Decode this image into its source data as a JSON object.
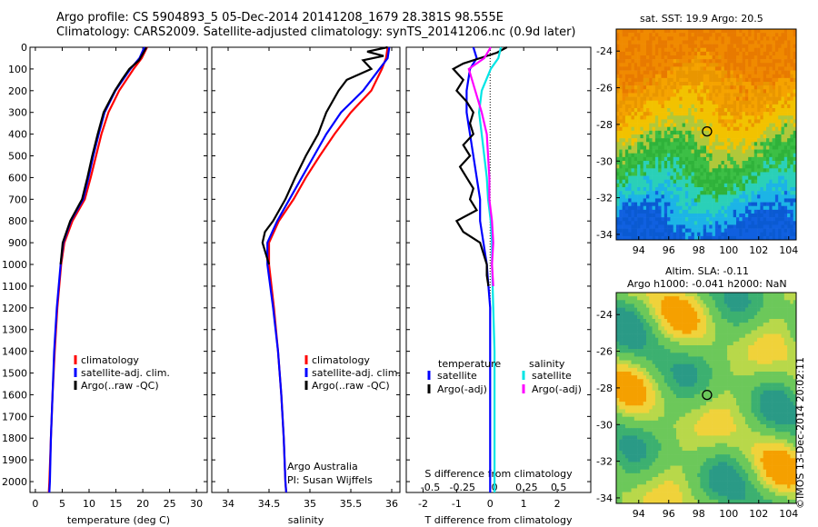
{
  "header": {
    "line1": "Argo profile: CS 5904893_5 05-Dec-2014 20141208_1679 28.381S 98.555E",
    "line2": "Climatology: CARS2009. Satellite-adjusted climatology: synTS_20141206.nc (0.9d later)"
  },
  "chart_data": [
    {
      "type": "line",
      "panel": "temperature",
      "xlabel": "temperature (deg C)",
      "ylabel": "",
      "xlim": [
        -1,
        32
      ],
      "ylim": [
        2050,
        0
      ],
      "xticks": [
        0,
        5,
        10,
        15,
        20,
        25,
        30
      ],
      "yticks": [
        0,
        100,
        200,
        300,
        400,
        500,
        600,
        700,
        800,
        900,
        1000,
        1100,
        1200,
        1300,
        1400,
        1500,
        1600,
        1700,
        1800,
        1900,
        2000
      ],
      "legend_position": "lower-right",
      "legend": [
        "climatology",
        "satellite-adj. clim.",
        "Argo(..raw -QC)"
      ],
      "colors": [
        "#ff0000",
        "#0000ff",
        "#000000"
      ],
      "series": [
        {
          "name": "climatology",
          "depth": [
            0,
            50,
            100,
            200,
            300,
            400,
            500,
            600,
            700,
            800,
            900,
            1000,
            1200,
            1400,
            1600,
            1800,
            2000,
            2050
          ],
          "values": [
            20.8,
            19.8,
            18.3,
            15.6,
            13.6,
            12.3,
            11.3,
            10.3,
            9.2,
            6.9,
            5.4,
            4.8,
            4.1,
            3.6,
            3.2,
            2.9,
            2.6,
            2.5
          ]
        },
        {
          "name": "satellite-adj. clim.",
          "depth": [
            0,
            50,
            100,
            200,
            300,
            400,
            500,
            600,
            700,
            800,
            900,
            1000,
            1200,
            1400,
            1600,
            1800,
            2000,
            2050
          ],
          "values": [
            20.3,
            19.4,
            17.7,
            14.9,
            12.9,
            11.8,
            10.8,
            9.9,
            8.9,
            6.6,
            5.2,
            4.7,
            4.0,
            3.5,
            3.2,
            2.9,
            2.7,
            2.6
          ]
        },
        {
          "name": "Argo(..raw -QC)",
          "depth": [
            0,
            30,
            60,
            100,
            150,
            200,
            300,
            400,
            500,
            600,
            700,
            800,
            900,
            1000
          ],
          "values": [
            20.7,
            20.0,
            19.3,
            17.5,
            16.1,
            14.8,
            12.7,
            11.6,
            10.6,
            9.7,
            8.7,
            6.5,
            5.1,
            4.7
          ]
        }
      ]
    },
    {
      "type": "line",
      "panel": "salinity",
      "xlabel": "salinity",
      "ylabel": "",
      "xlim": [
        33.8,
        36.1
      ],
      "ylim": [
        2050,
        0
      ],
      "xticks": [
        34,
        34.5,
        35,
        35.5,
        36
      ],
      "legend_position": "lower-right",
      "legend": [
        "climatology",
        "satellite-adj. clim.",
        "Argo(..raw -QC)"
      ],
      "colors": [
        "#ff0000",
        "#0000ff",
        "#000000"
      ],
      "annotation": [
        "Argo Australia",
        "PI: Susan Wijffels"
      ],
      "series": [
        {
          "name": "climatology",
          "depth": [
            0,
            50,
            100,
            200,
            300,
            400,
            500,
            600,
            700,
            800,
            900,
            1000,
            1200,
            1400,
            1600,
            1800,
            2000,
            2050
          ],
          "values": [
            35.95,
            35.93,
            35.88,
            35.75,
            35.5,
            35.3,
            35.12,
            34.95,
            34.8,
            34.62,
            34.5,
            34.5,
            34.56,
            34.61,
            34.65,
            34.68,
            34.7,
            34.71
          ]
        },
        {
          "name": "satellite-adj. clim.",
          "depth": [
            0,
            50,
            100,
            200,
            300,
            400,
            500,
            600,
            700,
            800,
            900,
            1000,
            1200,
            1400,
            1600,
            1800,
            2000,
            2050
          ],
          "values": [
            35.97,
            35.95,
            35.85,
            35.65,
            35.38,
            35.2,
            35.05,
            34.9,
            34.75,
            34.6,
            34.48,
            34.48,
            34.55,
            34.61,
            34.65,
            34.68,
            34.7,
            34.71
          ]
        },
        {
          "name": "Argo(..raw -QC)",
          "depth": [
            0,
            20,
            40,
            60,
            100,
            150,
            200,
            300,
            400,
            500,
            600,
            700,
            800,
            850,
            900,
            950,
            1000
          ],
          "values": [
            35.95,
            35.7,
            35.9,
            35.65,
            35.75,
            35.45,
            35.35,
            35.2,
            35.1,
            34.95,
            34.82,
            34.7,
            34.55,
            34.45,
            34.42,
            34.46,
            34.5
          ]
        }
      ]
    },
    {
      "type": "line",
      "panel": "difference",
      "xlabel": "T difference from climatology",
      "xlabel_top": "S difference from climatology",
      "xlim": [
        -2.5,
        3
      ],
      "ylim": [
        2050,
        0
      ],
      "xticks": [
        -2,
        -1,
        0,
        1,
        2
      ],
      "xtick_labels": [
        "-2",
        "-1",
        "0",
        "1",
        "2"
      ],
      "sticks": [
        -0.5,
        -0.25,
        0,
        0.25,
        0.5
      ],
      "stick_labels": [
        "-0.5",
        "-0.25",
        "0",
        "0.25",
        "0.5"
      ],
      "zero_line": true,
      "legend_headers": [
        "temperature",
        "salinity"
      ],
      "legend": [
        "satellite",
        "Argo(-adj)",
        "satellite",
        "Argo(-adj)"
      ],
      "colors": [
        "#0000ff",
        "#000000",
        "#00e5e5",
        "#ff00ff"
      ],
      "series": [
        {
          "name": "satellite",
          "quantity": "temperature",
          "depth": [
            0,
            50,
            100,
            200,
            300,
            400,
            500,
            600,
            700,
            800,
            900,
            1000,
            1100,
            1200,
            1400,
            1600,
            1800,
            2000,
            2050
          ],
          "values": [
            -0.5,
            -0.4,
            -0.6,
            -0.7,
            -0.7,
            -0.6,
            -0.5,
            -0.4,
            -0.3,
            -0.3,
            -0.2,
            -0.1,
            -0.05,
            0,
            0,
            0,
            0,
            0,
            0
          ]
        },
        {
          "name": "Argo(-adj)",
          "quantity": "temperature",
          "depth": [
            0,
            25,
            50,
            75,
            100,
            150,
            200,
            250,
            300,
            350,
            400,
            450,
            500,
            550,
            600,
            650,
            700,
            750,
            800,
            850,
            900,
            950,
            1000,
            1050,
            1100
          ],
          "values": [
            0.5,
            0.2,
            -0.3,
            -0.8,
            -1.1,
            -0.8,
            -1.0,
            -0.7,
            -0.5,
            -0.6,
            -0.5,
            -0.8,
            -0.6,
            -0.9,
            -0.7,
            -0.5,
            -0.6,
            -0.4,
            -1.0,
            -0.8,
            -0.3,
            -0.2,
            -0.1,
            -0.1,
            -0.05
          ]
        },
        {
          "name": "satellite",
          "quantity": "salinity",
          "depth": [
            0,
            50,
            100,
            200,
            300,
            400,
            500,
            600,
            700,
            800,
            900,
            1000,
            1200,
            1400,
            1600,
            1800,
            2000,
            2050
          ],
          "values": [
            0.05,
            0.03,
            -0.03,
            -0.1,
            -0.12,
            -0.1,
            -0.08,
            -0.06,
            -0.05,
            -0.03,
            -0.02,
            -0.02,
            -0.01,
            0,
            0,
            0,
            0,
            0
          ]
        },
        {
          "name": "Argo(-adj)",
          "quantity": "salinity",
          "depth": [
            0,
            50,
            100,
            200,
            300,
            400,
            500,
            600,
            700,
            800,
            900,
            1000,
            1100
          ],
          "values": [
            -0.03,
            -0.08,
            -0.2,
            -0.15,
            -0.1,
            -0.06,
            -0.05,
            -0.04,
            -0.04,
            -0.02,
            -0.01,
            -0.02,
            -0.01
          ]
        }
      ]
    },
    {
      "type": "heatmap",
      "panel": "sst-map",
      "title": "sat. SST: 19.9 Argo: 20.5",
      "xlim": [
        92.5,
        104.5
      ],
      "ylim": [
        -34.3,
        -22.8
      ],
      "xticks": [
        94,
        96,
        98,
        100,
        102,
        104
      ],
      "yticks": [
        -24,
        -26,
        -28,
        -30,
        -32,
        -34
      ],
      "marker": {
        "lon": 98.555,
        "lat": -28.381
      }
    },
    {
      "type": "heatmap",
      "panel": "sla-map",
      "title_lines": [
        "Altim. SLA: -0.11",
        "Argo h1000: -0.041 h2000: NaN"
      ],
      "xlim": [
        92.5,
        104.5
      ],
      "ylim": [
        -34.3,
        -22.8
      ],
      "xticks": [
        94,
        96,
        98,
        100,
        102,
        104
      ],
      "yticks": [
        -24,
        -26,
        -28,
        -30,
        -32,
        -34
      ],
      "marker": {
        "lon": 98.555,
        "lat": -28.381
      }
    }
  ],
  "watermark": "©IMOS 13-Dec-2014 20:02:11"
}
